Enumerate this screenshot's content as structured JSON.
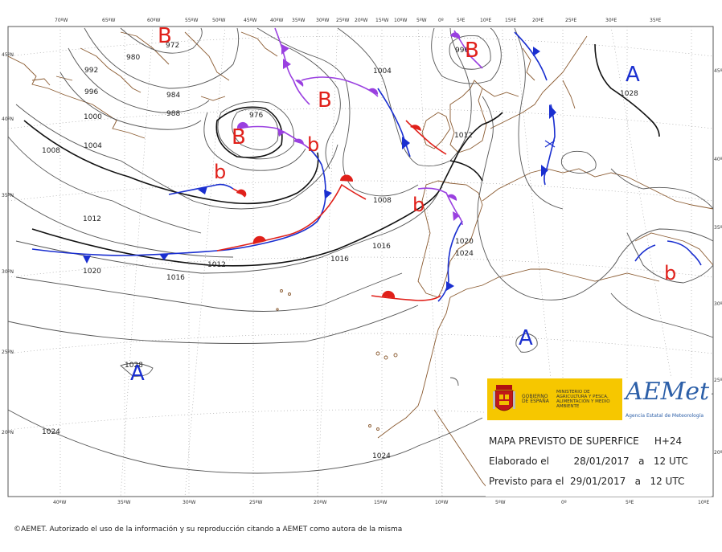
{
  "map": {
    "lon_labels_top": [
      "70ºW",
      "65ºW",
      "60ºW",
      "55ºW",
      "50ºW",
      "45ºW",
      "40ºW",
      "35ºW",
      "30ºW",
      "25ºW",
      "20ºW",
      "15ºW",
      "10ºW",
      "5ºW",
      "0º",
      "5ºE",
      "10ºE",
      "15ºE",
      "20ºE",
      "25ºE",
      "30ºE",
      "35ºE"
    ],
    "lon_labels_bottom": [
      "40ºW",
      "35ºW",
      "30ºW",
      "25ºW",
      "20ºW",
      "15ºW",
      "10ºW",
      "5ºW",
      "0º",
      "5ºE",
      "10ºE"
    ],
    "lat_labels_left": [
      "45ºN",
      "40ºN",
      "35ºN",
      "30ºN",
      "25ºN",
      "20ºN"
    ],
    "lat_labels_right": [
      "45ºN",
      "40ºN",
      "35ºN",
      "30ºN",
      "25ºN",
      "20ºN"
    ],
    "isobar_labels": [
      "972",
      "980",
      "992",
      "996",
      "984",
      "988",
      "976",
      "1000",
      "1004",
      "1008",
      "1012",
      "1020",
      "1012",
      "1016",
      "1004",
      "1008",
      "1016",
      "1012",
      "1020",
      "1024",
      "1016",
      "1028",
      "1024",
      "1024",
      "996",
      "1028"
    ],
    "pressure_systems": [
      "B",
      "B",
      "B",
      "B",
      "b",
      "b",
      "b",
      "b",
      "A",
      "A",
      "A"
    ]
  },
  "legend": {
    "gov_line1": "GOBIERNO DE ESPAÑA",
    "gov_line2": "MINISTERIO DE AGRICULTURA Y PESCA, ALIMENTACIÓN Y MEDIO AMBIENTE",
    "agency_logo": "AEMet",
    "agency_name": "Agencia Estatal de Meteorología",
    "title": "MAPA PREVISTO DE SUPERFICE     H+24",
    "elaborated": "Elaborado el        28/01/2017   a   12 UTC",
    "valid": "Previsto para el  29/01/2017   a   12 UTC"
  },
  "footer": "©AEMET. Autorizado el uso de la información y su reproducción citando a AEMET como autora de la misma",
  "colors": {
    "low": "#e0201a",
    "high": "#1a2fd0",
    "occluded": "#9a40e0",
    "coast": "#8a5a30"
  }
}
